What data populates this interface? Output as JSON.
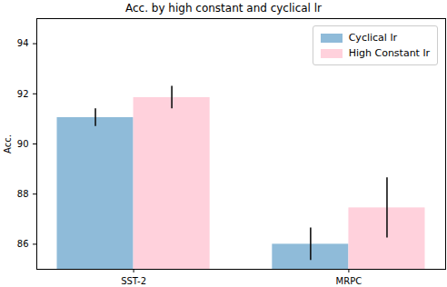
{
  "chart_data": {
    "type": "bar",
    "title": "Acc. by high constant and cyclical lr",
    "y_label": "Acc.",
    "categories": [
      "SST-2",
      "MRPC"
    ],
    "series": [
      {
        "name": "Cyclical lr",
        "color": "#8fbbd9",
        "values": [
          91.05,
          86.0
        ],
        "errors": [
          0.35,
          0.65
        ]
      },
      {
        "name": "High Constant lr",
        "color": "#ffd1dc",
        "values": [
          91.85,
          87.45
        ],
        "errors": [
          0.45,
          1.2
        ]
      }
    ],
    "ylim": [
      85,
      95
    ],
    "yticks": [
      86,
      88,
      90,
      92,
      94
    ],
    "legend": "upper right",
    "grid": false
  }
}
